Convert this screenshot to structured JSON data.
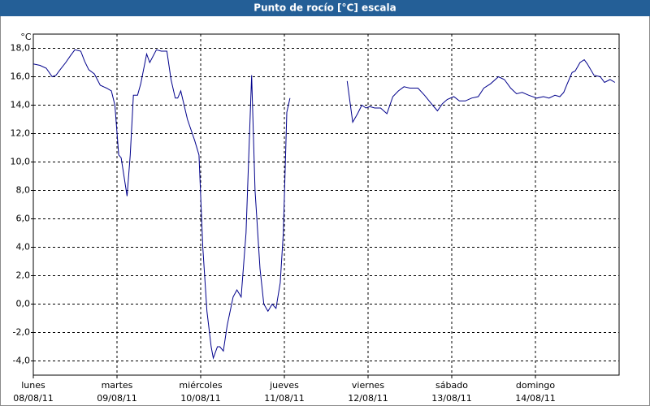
{
  "chart_data": {
    "type": "line",
    "title": "Punto de rocío [°C] escala",
    "y_unit": "°C",
    "x": [
      0,
      1.9,
      3.7,
      5.4,
      6.5,
      7.7,
      9.3,
      10.7,
      11.9,
      13.6,
      14.7,
      15.9,
      17.5,
      19.2,
      21.0,
      22.4,
      23.4,
      24.5,
      25.2,
      26.9,
      27.8,
      28.7,
      29.9,
      30.8,
      32.5,
      33.4,
      35.3,
      36.7,
      38.3,
      39.5,
      40.7,
      41.4,
      42.3,
      44.2,
      46.3,
      47.5,
      48.6,
      49.8,
      51.0,
      51.6,
      52.8,
      53.5,
      54.5,
      55.6,
      57.3,
      58.4,
      59.6,
      61.0,
      62.6,
      63.6,
      65.0,
      66.1,
      67.3,
      68.5,
      69.6,
      70.8,
      71.7,
      72.7,
      73.6,
      82,
      90.0,
      91.6,
      93.0,
      94.2,
      95.4,
      96.5,
      97.9,
      99.6,
      101.4,
      103.1,
      104.7,
      106.3,
      108.0,
      110.3,
      112.2,
      114.5,
      115.9,
      117.3,
      118.7,
      120.6,
      122.2,
      123.9,
      125.7,
      127.6,
      129.2,
      131.1,
      133.4,
      135.1,
      136.9,
      138.6,
      140.2,
      142.1,
      144.4,
      146.3,
      147.9,
      149.6,
      151.0,
      152.1,
      153.1,
      154.5,
      155.4,
      156.8,
      158.0,
      158.9,
      160.8,
      162.6,
      163.8,
      165.4,
      166.8
    ],
    "values": [
      16.9,
      16.8,
      16.6,
      16.0,
      16.1,
      16.5,
      17.0,
      17.5,
      17.9,
      17.8,
      17.1,
      16.5,
      16.2,
      15.4,
      15.2,
      15.0,
      14.0,
      10.5,
      10.3,
      7.6,
      10.5,
      14.7,
      14.7,
      15.5,
      17.6,
      17.0,
      17.9,
      17.8,
      17.8,
      15.8,
      14.5,
      14.5,
      15.0,
      13.0,
      11.5,
      10.5,
      4.0,
      -0.5,
      -3.0,
      -3.8,
      -3.0,
      -3.0,
      -3.3,
      -1.5,
      0.5,
      1.0,
      0.5,
      5.0,
      16.1,
      8.0,
      2.5,
      0.0,
      -0.5,
      0.0,
      -0.3,
      1.5,
      5.0,
      13.5,
      14.5,
      null,
      15.7,
      12.8,
      13.4,
      14.0,
      13.8,
      13.9,
      13.8,
      13.8,
      13.4,
      14.6,
      15.0,
      15.3,
      15.2,
      15.2,
      14.7,
      14.0,
      13.6,
      14.1,
      14.4,
      14.6,
      14.3,
      14.3,
      14.5,
      14.6,
      15.2,
      15.5,
      16.0,
      15.8,
      15.2,
      14.8,
      14.9,
      14.7,
      14.5,
      14.6,
      14.5,
      14.7,
      14.6,
      14.9,
      15.5,
      16.3,
      16.4,
      17.0,
      17.2,
      16.9,
      16.1,
      16.0,
      15.6,
      15.8,
      15.6
    ],
    "color": "#00008b",
    "xlim": [
      0,
      168
    ],
    "xticks": [
      {
        "value": 0,
        "label": "lunes"
      },
      {
        "value": 24,
        "label": "martes"
      },
      {
        "value": 48,
        "label": "miércoles"
      },
      {
        "value": 72,
        "label": "jueves"
      },
      {
        "value": 96,
        "label": "viernes"
      },
      {
        "value": 120,
        "label": "sábado"
      },
      {
        "value": 144,
        "label": "domingo"
      }
    ],
    "xtick_dates": [
      "08/08/11",
      "09/08/11",
      "10/08/11",
      "11/08/11",
      "12/08/11",
      "13/08/11",
      "14/08/11"
    ],
    "ylim": [
      -5,
      19
    ],
    "yticks": [
      {
        "value": -4,
        "label": "-4,0"
      },
      {
        "value": -2,
        "label": "-2,0"
      },
      {
        "value": 0,
        "label": "0,0"
      },
      {
        "value": 2,
        "label": "2,0"
      },
      {
        "value": 4,
        "label": "4,0"
      },
      {
        "value": 6,
        "label": "6,0"
      },
      {
        "value": 8,
        "label": "8,0"
      },
      {
        "value": 10,
        "label": "10,0"
      },
      {
        "value": 12,
        "label": "12,0"
      },
      {
        "value": 14,
        "label": "14,0"
      },
      {
        "value": 16,
        "label": "16,0"
      },
      {
        "value": 18,
        "label": "18,0"
      }
    ],
    "grid": true
  }
}
